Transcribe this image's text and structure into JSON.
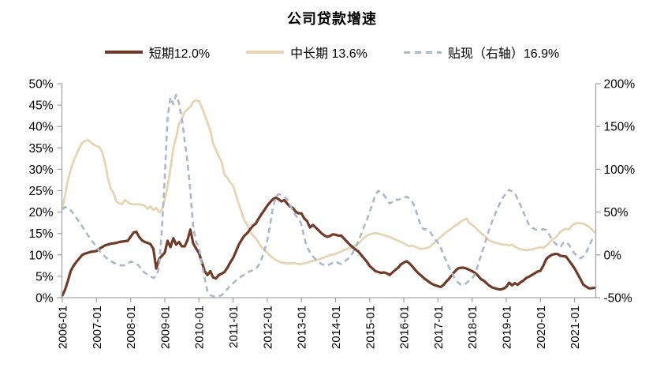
{
  "title": "公司贷款增速",
  "legend": {
    "items": [
      {
        "label": "短期12.0%",
        "color": "#6F3B28",
        "style": "solid"
      },
      {
        "label": "中长期 13.6%",
        "color": "#E6D5B3",
        "style": "solid"
      },
      {
        "label": "贴现（右轴）16.9%",
        "color": "#AEB6C9",
        "style": "dashed"
      }
    ]
  },
  "colors": {
    "background": "#FFFFFF",
    "axis": "#A6A6A6",
    "tick_text": "#000000",
    "short_term": "#6F3B28",
    "medium_long_term": "#E6D5B3",
    "discount": "#AEB6C9"
  },
  "chart_data": {
    "type": "line",
    "title": "公司贷款增速",
    "frequency": "monthly",
    "x_start": "2006-01",
    "x_end": "2021-08",
    "x_tick_labels": [
      "2006-01",
      "2007-01",
      "2008-01",
      "2009-01",
      "2010-01",
      "2011-01",
      "2012-01",
      "2013-01",
      "2014-01",
      "2015-01",
      "2016-01",
      "2017-01",
      "2018-01",
      "2019-01",
      "2020-01",
      "2021-01"
    ],
    "left_axis": {
      "min": 0,
      "max": 50,
      "step": 5,
      "unit": "%",
      "tick_labels": [
        "0%",
        "5%",
        "10%",
        "15%",
        "20%",
        "25%",
        "30%",
        "35%",
        "40%",
        "45%",
        "50%"
      ]
    },
    "right_axis": {
      "min": -50,
      "max": 200,
      "step": 50,
      "unit": "%",
      "tick_labels": [
        "-50%",
        "0%",
        "50%",
        "100%",
        "150%",
        "200%"
      ]
    },
    "grid": false,
    "legend_position": "top",
    "series": [
      {
        "name": "中长期",
        "legend_label": "中长期 13.6%",
        "axis": "left",
        "color": "#E6D5B3",
        "dash": false,
        "width": 2.8,
        "values": [
          21.0,
          24.0,
          27.5,
          30.0,
          32.0,
          33.5,
          35.0,
          36.2,
          36.6,
          36.9,
          36.3,
          35.8,
          35.4,
          35.2,
          34.0,
          31.7,
          28.0,
          25.5,
          24.4,
          22.5,
          22.0,
          21.9,
          22.8,
          22.3,
          21.9,
          21.8,
          21.8,
          21.8,
          21.7,
          21.5,
          20.7,
          21.3,
          20.5,
          21.0,
          20.0,
          20.5,
          23.0,
          26.0,
          30.0,
          34.9,
          37.5,
          40.6,
          41.8,
          43.4,
          44.0,
          44.6,
          45.8,
          46.1,
          46.0,
          44.5,
          42.8,
          41.0,
          39.0,
          36.0,
          34.5,
          33.0,
          31.7,
          28.7,
          28.0,
          27.0,
          26.2,
          24.0,
          21.9,
          20.0,
          18.0,
          17.0,
          15.5,
          14.5,
          13.9,
          12.8,
          11.8,
          11.2,
          10.5,
          9.8,
          9.3,
          8.8,
          8.5,
          8.2,
          8.1,
          8.0,
          8.0,
          8.1,
          8.0,
          7.9,
          7.8,
          8.0,
          8.2,
          8.4,
          8.6,
          8.7,
          8.9,
          9.2,
          9.4,
          9.7,
          9.9,
          10.1,
          10.2,
          10.5,
          10.8,
          11.1,
          11.4,
          11.6,
          11.8,
          12.2,
          12.6,
          13.3,
          14.0,
          14.5,
          14.8,
          15.0,
          15.1,
          15.0,
          14.8,
          14.6,
          14.4,
          14.2,
          13.9,
          13.6,
          13.3,
          13.0,
          12.7,
          12.3,
          12.0,
          12.2,
          11.9,
          11.6,
          11.4,
          11.5,
          11.6,
          11.8,
          12.4,
          13.0,
          13.6,
          14.2,
          14.8,
          15.3,
          15.8,
          16.3,
          16.8,
          17.2,
          17.8,
          18.1,
          18.5,
          17.5,
          17.0,
          16.5,
          15.8,
          15.2,
          14.6,
          14.0,
          13.4,
          13.1,
          12.9,
          12.7,
          12.5,
          12.4,
          12.4,
          12.2,
          12.4,
          11.9,
          11.6,
          11.3,
          11.2,
          11.1,
          11.2,
          11.3,
          11.5,
          11.6,
          11.8,
          11.6,
          12.1,
          12.8,
          13.5,
          13.9,
          14.6,
          15.4,
          15.8,
          16.1,
          15.9,
          16.8,
          17.3,
          17.4,
          17.4,
          17.3,
          17.0,
          16.6,
          16.0,
          15.3
        ]
      },
      {
        "name": "短期",
        "legend_label": "短期12.0%",
        "axis": "left",
        "color": "#6F3B28",
        "dash": false,
        "width": 3.2,
        "values": [
          0.5,
          1.9,
          4.0,
          6.3,
          7.5,
          8.4,
          9.2,
          10.0,
          10.3,
          10.5,
          10.7,
          10.8,
          10.9,
          11.4,
          11.8,
          12.2,
          12.4,
          12.6,
          12.7,
          12.8,
          13.0,
          13.1,
          13.2,
          13.3,
          14.2,
          15.2,
          15.4,
          14.2,
          13.4,
          13.0,
          12.8,
          12.5,
          11.4,
          6.8,
          9.0,
          9.8,
          10.5,
          13.3,
          11.8,
          13.9,
          12.4,
          13.0,
          12.0,
          12.0,
          13.5,
          15.9,
          12.7,
          11.5,
          10.5,
          8.4,
          6.2,
          5.3,
          6.2,
          4.7,
          4.5,
          5.3,
          5.6,
          6.0,
          7.0,
          8.2,
          9.3,
          10.8,
          12.4,
          13.5,
          14.5,
          15.1,
          16.0,
          16.8,
          17.3,
          18.5,
          19.5,
          20.5,
          21.5,
          22.3,
          23.0,
          23.4,
          23.0,
          22.5,
          22.8,
          22.0,
          21.3,
          21.0,
          20.1,
          19.7,
          19.7,
          18.5,
          17.9,
          16.4,
          17.0,
          16.4,
          15.8,
          15.1,
          14.6,
          14.2,
          14.4,
          14.8,
          14.7,
          14.5,
          14.5,
          13.8,
          13.1,
          12.4,
          11.8,
          11.3,
          10.8,
          10.0,
          9.2,
          8.4,
          7.4,
          6.8,
          6.2,
          6.0,
          5.8,
          5.9,
          5.7,
          5.3,
          5.9,
          6.5,
          7.0,
          7.8,
          8.2,
          8.5,
          8.0,
          7.3,
          6.5,
          5.8,
          5.2,
          4.6,
          4.1,
          3.6,
          3.2,
          2.9,
          2.7,
          2.5,
          3.0,
          3.8,
          4.5,
          5.4,
          6.2,
          6.8,
          7.0,
          7.0,
          6.8,
          6.5,
          6.2,
          5.8,
          5.2,
          4.4,
          4.0,
          3.4,
          2.8,
          2.4,
          2.2,
          2.0,
          1.9,
          2.1,
          2.5,
          3.5,
          2.9,
          3.4,
          3.0,
          3.6,
          4.0,
          4.6,
          4.9,
          5.3,
          5.7,
          6.1,
          6.3,
          7.5,
          9.0,
          9.6,
          10.0,
          10.2,
          10.2,
          9.8,
          9.7,
          9.6,
          8.7,
          7.8,
          6.8,
          5.6,
          4.4,
          3.1,
          2.6,
          2.2,
          2.2,
          2.3
        ]
      },
      {
        "name": "贴现",
        "legend_label": "贴现（右轴）16.9%",
        "axis": "right",
        "color": "#AEB6C9",
        "dash": true,
        "width": 2.6,
        "values": [
          53,
          56,
          55,
          52,
          48,
          43,
          38,
          33,
          28,
          23,
          18,
          14,
          9,
          5,
          1,
          -2,
          -5,
          -7,
          -9,
          -10.5,
          -11.5,
          -12.5,
          -12,
          -10,
          -8,
          -8.5,
          -10,
          -13,
          -18,
          -21,
          -23,
          -25,
          -27,
          -25,
          -15,
          30,
          90,
          160,
          184,
          176,
          187,
          177,
          160,
          133,
          108,
          75,
          33,
          15,
          10,
          -10,
          -27,
          -43,
          -47,
          -48.5,
          -49,
          -48.5,
          -47,
          -44,
          -40,
          -36,
          -33,
          -30,
          -27,
          -25,
          -23,
          -21,
          -19,
          -18,
          -16,
          -12,
          -5,
          5,
          17,
          35,
          55,
          68,
          71,
          70,
          68,
          65,
          58,
          52,
          46,
          42,
          36,
          20,
          9,
          3,
          -1.5,
          -5,
          -8,
          -10.5,
          -12,
          -12.5,
          -11,
          -9,
          -8,
          -9.5,
          -10.7,
          -8,
          -5.5,
          -3,
          2,
          9,
          16,
          24,
          33,
          41,
          50,
          60,
          70,
          75,
          72,
          70,
          65,
          60,
          62,
          65,
          64,
          66,
          67,
          68,
          66,
          62,
          55,
          44,
          33,
          30,
          30,
          28,
          23,
          18,
          14,
          8,
          0,
          -8,
          -15,
          -22,
          -28,
          -32,
          -35,
          -35,
          -33,
          -30,
          -28,
          -22,
          -13,
          -2,
          8,
          19,
          30,
          39,
          47,
          55,
          62,
          68,
          72,
          76,
          74,
          72,
          65,
          58,
          50,
          42,
          35,
          32,
          30,
          29,
          29,
          30,
          29,
          24,
          18,
          14,
          11,
          9,
          14,
          15,
          12,
          6,
          1.5,
          -2,
          -4,
          -2,
          2,
          10,
          17,
          21
        ]
      }
    ]
  }
}
